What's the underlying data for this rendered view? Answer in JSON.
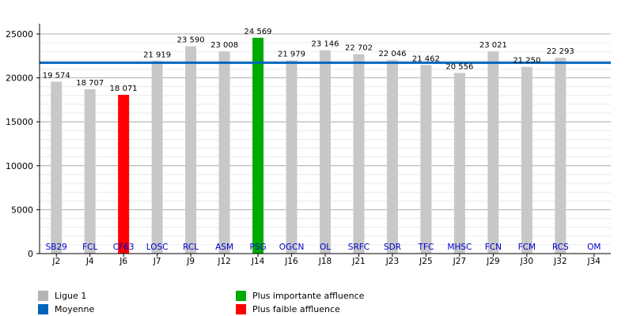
{
  "chart_data": {
    "type": "bar",
    "x_ticks": [
      "J2",
      "J4",
      "J6",
      "J7",
      "J9",
      "J12",
      "J14",
      "J16",
      "J18",
      "J21",
      "J23",
      "J25",
      "J27",
      "J29",
      "J30",
      "J32",
      "J34"
    ],
    "teams": [
      "SB29",
      "FCL",
      "CF63",
      "LOSC",
      "RCL",
      "ASM",
      "PSG",
      "OGCN",
      "OL",
      "SRFC",
      "SDR",
      "TFC",
      "MHSC",
      "FCN",
      "FCM",
      "RCS",
      "OM"
    ],
    "values": [
      19574,
      18707,
      18071,
      21919,
      23590,
      23008,
      24569,
      21979,
      23146,
      22702,
      22046,
      21462,
      20556,
      23021,
      21250,
      22293,
      null
    ],
    "value_labels": [
      "19 574",
      "18 707",
      "18 071",
      "21 919",
      "23 590",
      "23 008",
      "24 569",
      "21 979",
      "23 146",
      "22 702",
      "22 046",
      "21 462",
      "20 556",
      "23 021",
      "21 250",
      "22 293",
      ""
    ],
    "highlight": {
      "max_index": 6,
      "min_index": 2
    },
    "average": 21729,
    "ylim": [
      0,
      25000
    ],
    "y_ticks": [
      0,
      5000,
      10000,
      15000,
      20000,
      25000
    ],
    "grid": true,
    "colors": {
      "bar": "#c8c8c8",
      "max": "#00aa00",
      "min": "#ff0000",
      "average": "#0066bb",
      "team_label": "#0000cc"
    },
    "legend": [
      {
        "label": "Ligue 1",
        "color": "#b4b4b4"
      },
      {
        "label": "Moyenne",
        "color": "#0066bb"
      },
      {
        "label": "Plus importante affluence",
        "color": "#00aa00"
      },
      {
        "label": "Plus faible affluence",
        "color": "#ff0000"
      }
    ]
  }
}
